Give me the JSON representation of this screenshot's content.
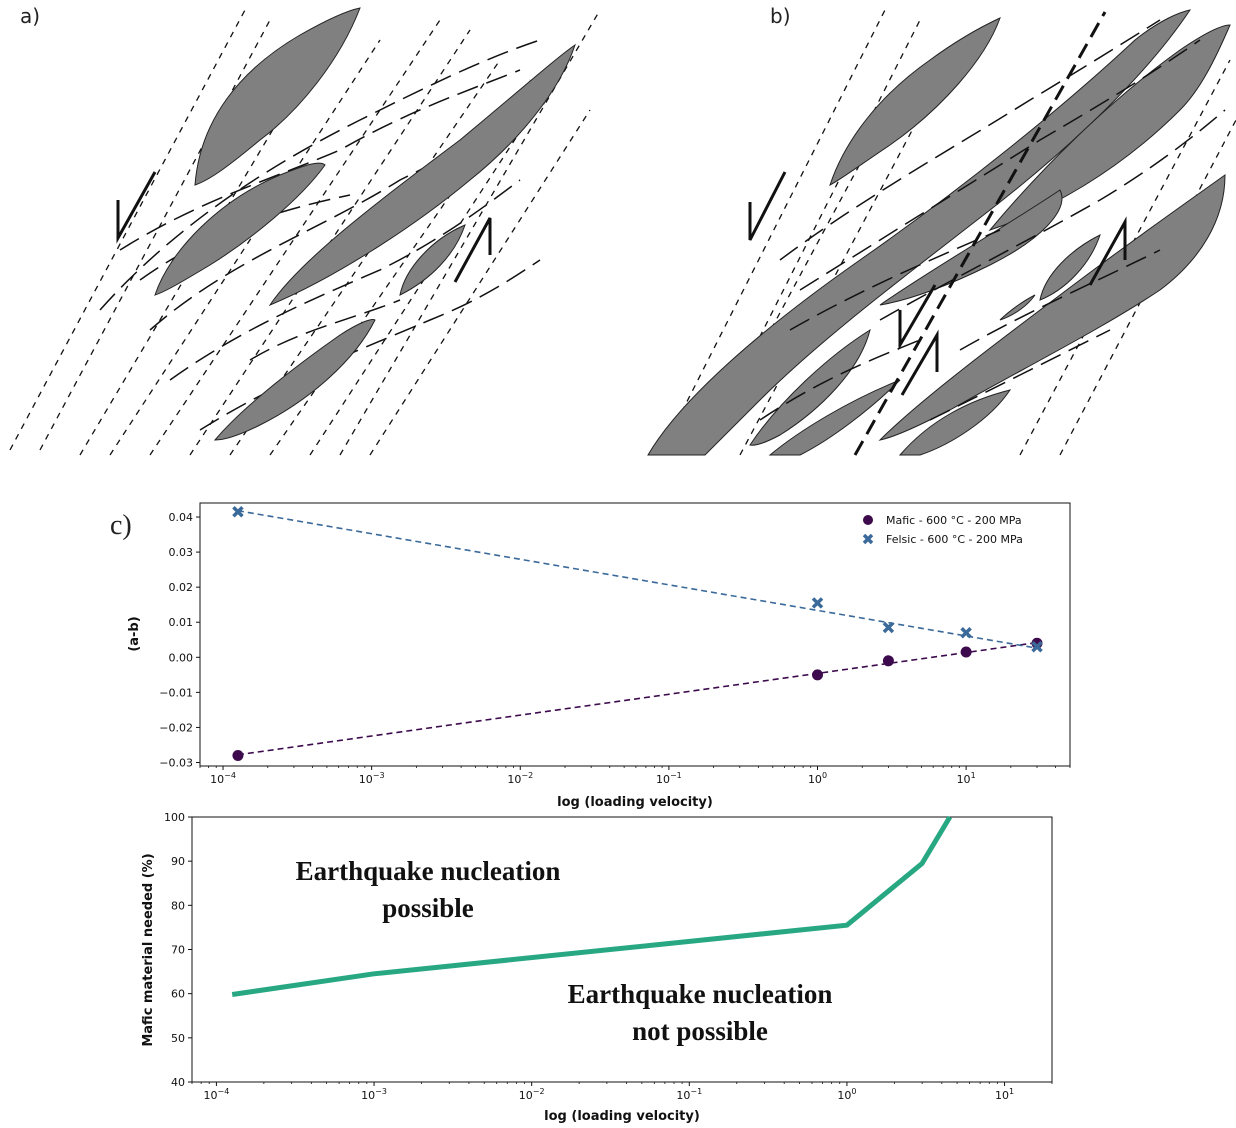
{
  "panels": {
    "a": "a)",
    "b": "b)",
    "c": "c)"
  },
  "colors": {
    "mafic": "#3d0b4d",
    "felsic": "#3b6a9a",
    "threshold": "#27a883",
    "lens_fill": "#808080"
  },
  "chart_data": [
    {
      "type": "scatter",
      "xscale": "log",
      "xlabel": "log (loading velocity)",
      "ylabel": "(a-b)",
      "xlim": [
        7e-05,
        50
      ],
      "ylim": [
        -0.031,
        0.044
      ],
      "xticks": [
        {
          "value": 0.0001,
          "base": "10",
          "exp": "−4"
        },
        {
          "value": 0.001,
          "base": "10",
          "exp": "−3"
        },
        {
          "value": 0.01,
          "base": "10",
          "exp": "−2"
        },
        {
          "value": 0.1,
          "base": "10",
          "exp": "−1"
        },
        {
          "value": 1,
          "base": "10",
          "exp": "0"
        },
        {
          "value": 10,
          "base": "10",
          "exp": "1"
        }
      ],
      "yticks": [
        {
          "value": 0.04,
          "label": "0.04"
        },
        {
          "value": 0.03,
          "label": "0.03"
        },
        {
          "value": 0.02,
          "label": "0.02"
        },
        {
          "value": 0.01,
          "label": "0.01"
        },
        {
          "value": 0.0,
          "label": "0.00"
        },
        {
          "value": -0.01,
          "label": "−0.01"
        },
        {
          "value": -0.02,
          "label": "−0.02"
        },
        {
          "value": -0.03,
          "label": "−0.03"
        }
      ],
      "legend_position": "top-right",
      "series": [
        {
          "name": "Mafic - 600 °C - 200 MPa",
          "marker": "circle",
          "x": [
            0.000126,
            1,
            3,
            10,
            30
          ],
          "y": [
            -0.028,
            -0.005,
            -0.001,
            0.0015,
            0.004
          ],
          "fit": [
            [
              0.000126,
              -0.0278
            ],
            [
              30,
              0.0042
            ]
          ]
        },
        {
          "name": "Felsic - 600 °C - 200 MPa",
          "marker": "x",
          "x": [
            0.000126,
            1,
            3,
            10,
            30
          ],
          "y": [
            0.0415,
            0.0155,
            0.0085,
            0.007,
            0.003
          ],
          "fit": [
            [
              0.000126,
              0.0418
            ],
            [
              30,
              0.0026
            ]
          ]
        }
      ]
    },
    {
      "type": "line",
      "xscale": "log",
      "xlabel": "log (loading velocity)",
      "ylabel": "Mafic material needed (%)",
      "xlim": [
        7e-05,
        20
      ],
      "ylim": [
        40,
        100
      ],
      "xticks": [
        {
          "value": 0.0001,
          "base": "10",
          "exp": "−4"
        },
        {
          "value": 0.001,
          "base": "10",
          "exp": "−3"
        },
        {
          "value": 0.01,
          "base": "10",
          "exp": "−2"
        },
        {
          "value": 0.1,
          "base": "10",
          "exp": "−1"
        },
        {
          "value": 1,
          "base": "10",
          "exp": "0"
        },
        {
          "value": 10,
          "base": "10",
          "exp": "1"
        }
      ],
      "yticks": [
        {
          "value": 100,
          "label": "100"
        },
        {
          "value": 90,
          "label": "90"
        },
        {
          "value": 80,
          "label": "80"
        },
        {
          "value": 70,
          "label": "70"
        },
        {
          "value": 60,
          "label": "60"
        },
        {
          "value": 50,
          "label": "50"
        },
        {
          "value": 40,
          "label": "40"
        }
      ],
      "series": [
        {
          "x": [
            0.000126,
            0.001,
            1,
            3,
            4.5
          ],
          "y": [
            59.8,
            64.5,
            75.5,
            89.5,
            100
          ]
        }
      ],
      "annotations": {
        "above": [
          "Earthquake nucleation",
          "possible"
        ],
        "below": [
          "Earthquake nucleation",
          "not possible"
        ]
      }
    }
  ]
}
